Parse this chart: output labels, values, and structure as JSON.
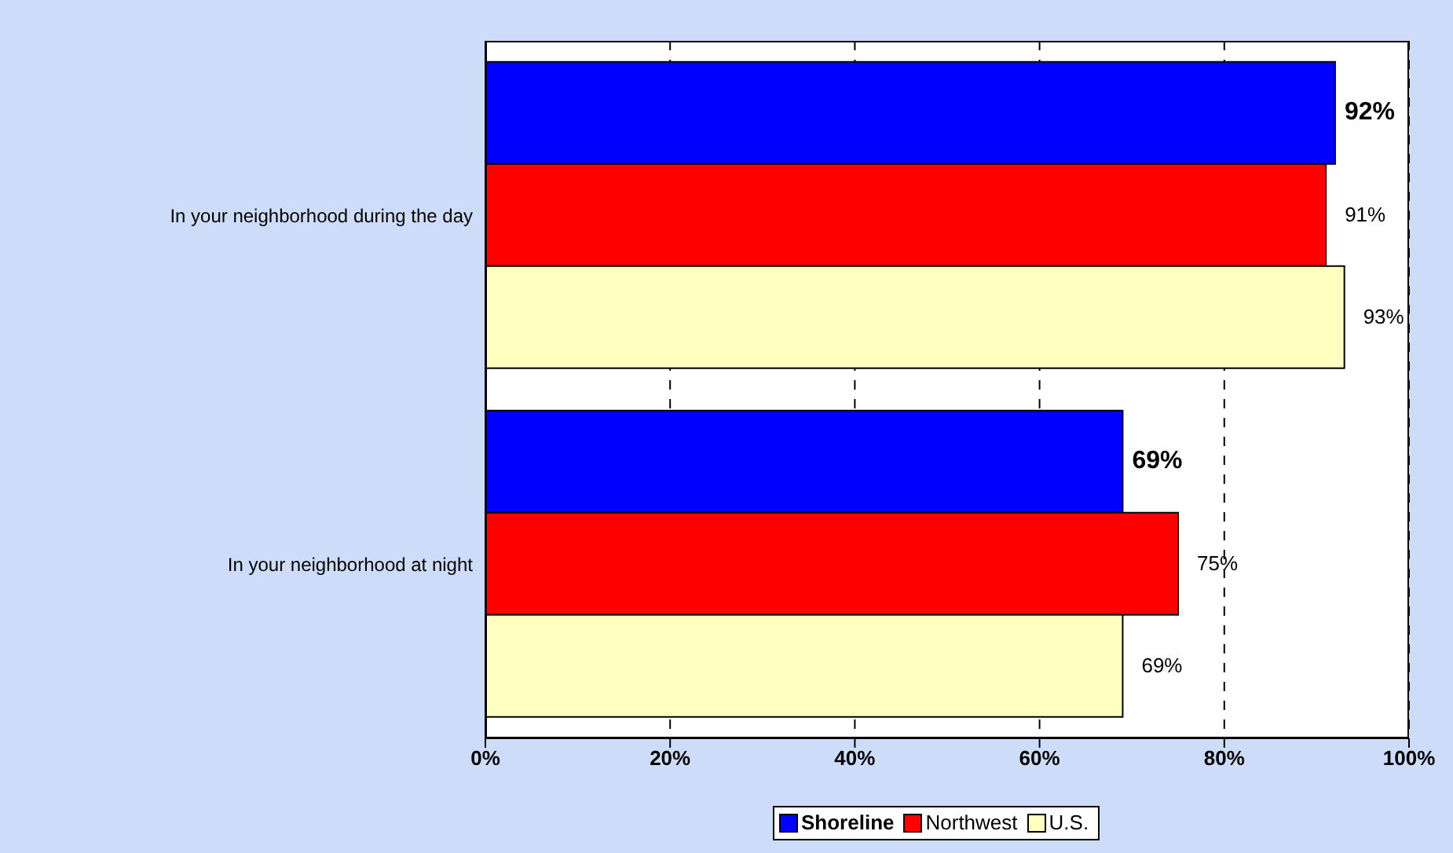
{
  "chart_data": {
    "type": "bar",
    "orientation": "horizontal",
    "categories": [
      "In your neighborhood during the day",
      "In your neighborhood at night"
    ],
    "series": [
      {
        "name": "Shoreline",
        "color": "#0000ff",
        "values": [
          92,
          69
        ],
        "value_labels": [
          "92%",
          "69%"
        ]
      },
      {
        "name": "Northwest",
        "color": "#ff0000",
        "values": [
          91,
          75
        ],
        "value_labels": [
          "91%",
          "75%"
        ]
      },
      {
        "name": "U.S.",
        "color": "#ffffc0",
        "values": [
          93,
          69
        ],
        "value_labels": [
          "93%",
          "69%"
        ]
      }
    ],
    "xlim": [
      0,
      100
    ],
    "xticks": [
      {
        "value": 0,
        "label": "0%"
      },
      {
        "value": 20,
        "label": "20%"
      },
      {
        "value": 40,
        "label": "40%"
      },
      {
        "value": 60,
        "label": "60%"
      },
      {
        "value": 80,
        "label": "80%"
      },
      {
        "value": 100,
        "label": "100%"
      }
    ],
    "grid": "x",
    "legend": "bottom"
  }
}
